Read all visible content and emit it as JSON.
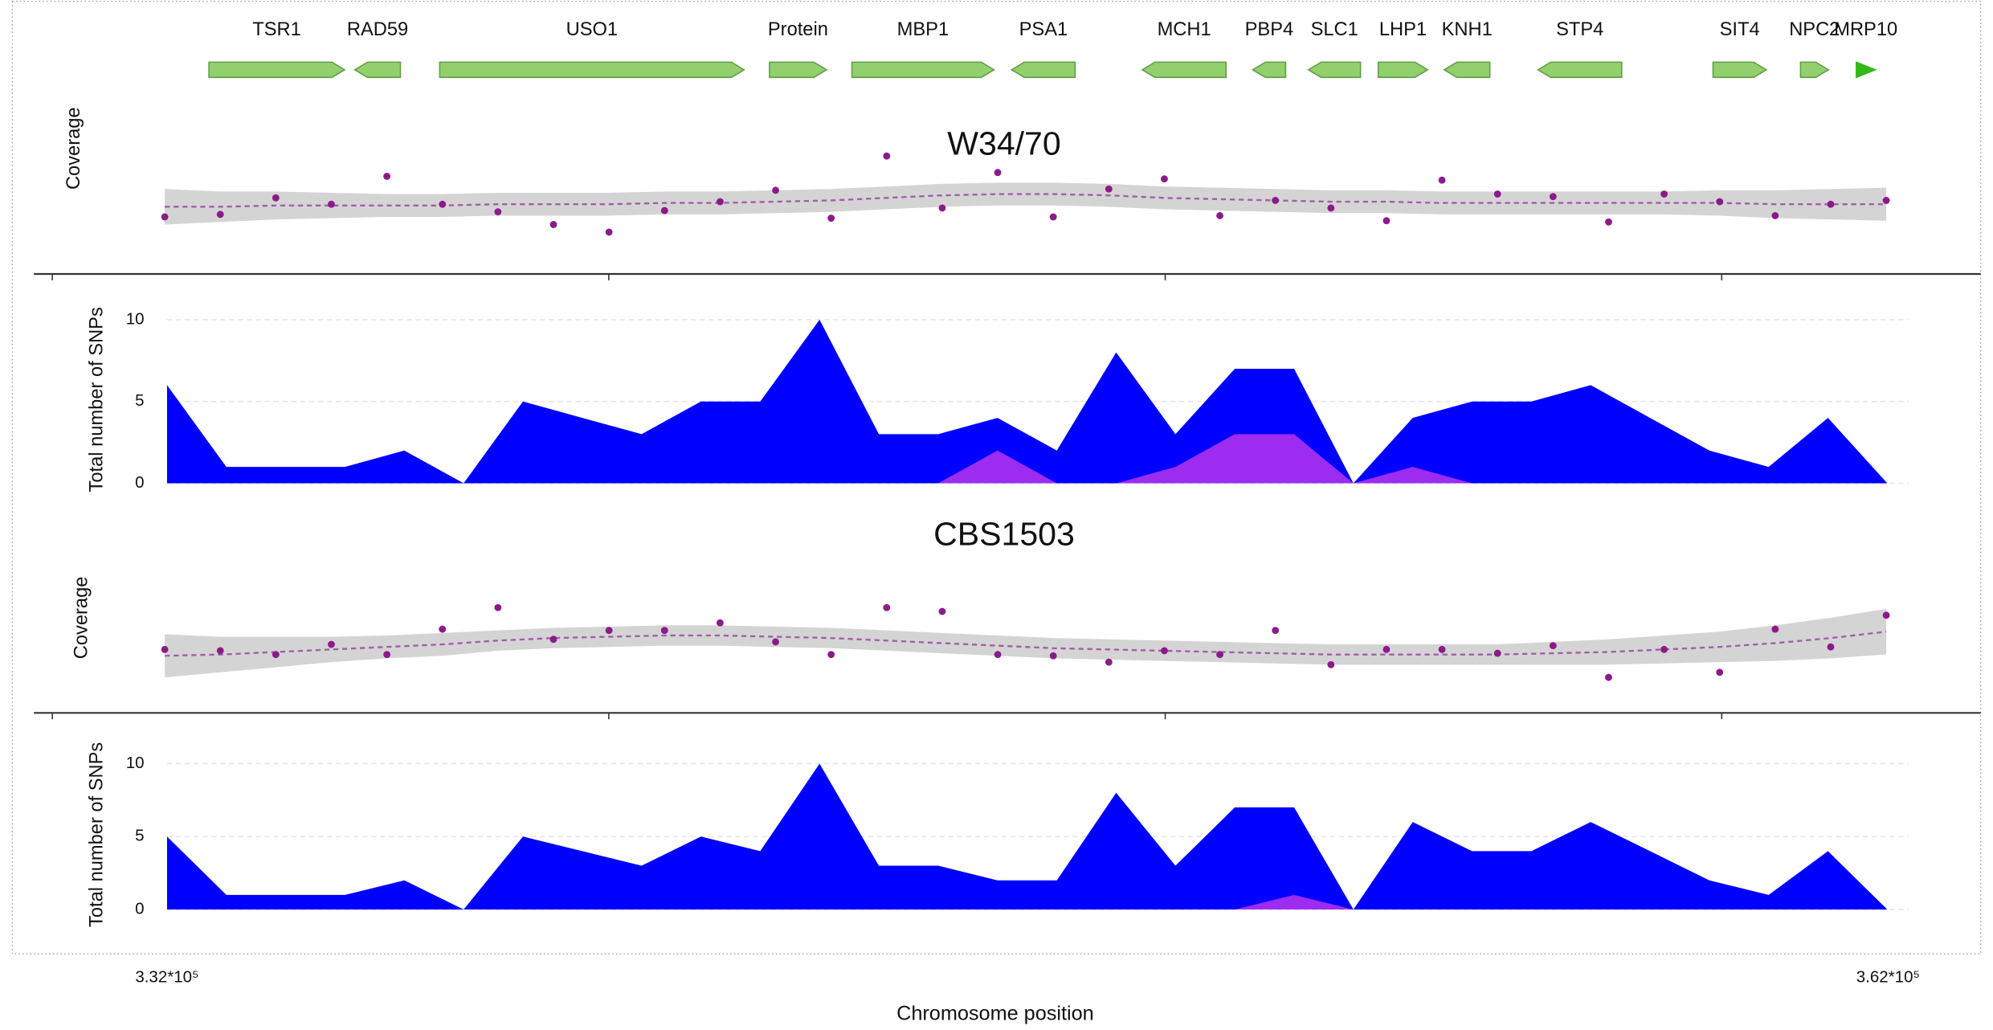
{
  "chart_data": [
    {
      "type": "genes",
      "xlim": [
        332000,
        362000
      ],
      "color": "#92d06e",
      "stroke": "#5f9e45",
      "genes": [
        {
          "name": "TSR1",
          "start": 332730,
          "end": 335095,
          "strand": "+"
        },
        {
          "name": "RAD59",
          "start": 335272,
          "end": 336068,
          "strand": "-"
        },
        {
          "name": "USO1",
          "start": 336753,
          "end": 342059,
          "strand": "+"
        },
        {
          "name": "Protein",
          "start": 342501,
          "end": 343496,
          "strand": "+"
        },
        {
          "name": "MBP1",
          "start": 343938,
          "end": 346414,
          "strand": "+"
        },
        {
          "name": "PSA1",
          "start": 346723,
          "end": 347829,
          "strand": "-"
        },
        {
          "name": "MCH1",
          "start": 349000,
          "end": 350459,
          "strand": "-"
        },
        {
          "name": "PBP4",
          "start": 350924,
          "end": 351498,
          "strand": "-"
        },
        {
          "name": "SLC1",
          "start": 351896,
          "end": 352803,
          "strand": "-"
        },
        {
          "name": "LHP1",
          "start": 353112,
          "end": 353974,
          "strand": "+"
        },
        {
          "name": "KNH1",
          "start": 354262,
          "end": 355058,
          "strand": "-"
        },
        {
          "name": "STP4",
          "start": 355898,
          "end": 357357,
          "strand": "-"
        },
        {
          "name": "SIT4",
          "start": 358948,
          "end": 359877,
          "strand": "+"
        },
        {
          "name": "NPC2",
          "start": 360474,
          "end": 360960,
          "strand": "+"
        },
        {
          "name": "MRP10",
          "start": 361446,
          "end": 361778,
          "strand": "+",
          "color": "#33b81a"
        }
      ]
    },
    {
      "type": "coverage",
      "title": "W34/70",
      "ylabel": "Coverage",
      "xlim": [
        332000,
        362000
      ],
      "ylim": [
        0,
        100
      ],
      "color": "#8b1a8b",
      "fit_color": "#a060a8",
      "band_color": "#d4d4d4",
      "minor_xticks": [
        330000,
        339700,
        349400,
        359100
      ],
      "x": [
        331960,
        332928,
        333896,
        334864,
        335832,
        336800,
        337768,
        338736,
        339704,
        340672,
        341640,
        342608,
        343576,
        344544,
        345512,
        346480,
        347448,
        348416,
        349384,
        350352,
        351320,
        352288,
        353256,
        354224,
        355192,
        356160,
        357128,
        358096,
        359064,
        360032,
        361000,
        361968
      ],
      "values": [
        29,
        31,
        44,
        39,
        61,
        39,
        33,
        23,
        17,
        34,
        41,
        50,
        28,
        77,
        36,
        64,
        29,
        51,
        59,
        30,
        42,
        36,
        26,
        58,
        47,
        45,
        25,
        47,
        41,
        30,
        39,
        42
      ],
      "fit": [
        37,
        37,
        38,
        38,
        38,
        38,
        39,
        39,
        39,
        40,
        40,
        41,
        42,
        44,
        46,
        47,
        47,
        46,
        44,
        43,
        42,
        41,
        41,
        40,
        40,
        40,
        40,
        40,
        40,
        39,
        39,
        39
      ],
      "ci": [
        14,
        12,
        11,
        10,
        9,
        9,
        9,
        9,
        9,
        9,
        9,
        9,
        9,
        9,
        9,
        9,
        9,
        9,
        9,
        9,
        9,
        9,
        9,
        9,
        9,
        9,
        9,
        9,
        10,
        11,
        12,
        13
      ]
    },
    {
      "type": "area",
      "ylabel": "Total number of SNPs",
      "xlim": [
        332000,
        362000
      ],
      "ylim": [
        0,
        10
      ],
      "yticks": [
        0,
        5,
        10
      ],
      "grid": true,
      "x": [
        332000,
        333034,
        334068,
        335102,
        336136,
        337170,
        338204,
        339238,
        340272,
        341306,
        342340,
        343374,
        344408,
        345442,
        346476,
        347510,
        348544,
        349578,
        350612,
        351646,
        352680,
        353714,
        354748,
        355782,
        356816,
        357850,
        358884,
        359918,
        360952,
        361986
      ],
      "series": [
        {
          "color": "#0000ff",
          "values": [
            6,
            1,
            1,
            1,
            2,
            0,
            5,
            4,
            3,
            5,
            5,
            10,
            3,
            3,
            4,
            2,
            8,
            3,
            7,
            7,
            0,
            4,
            5,
            5,
            6,
            4,
            2,
            1,
            4,
            0
          ]
        },
        {
          "color": "#9b2cf0",
          "values": [
            0,
            0,
            0,
            0,
            0,
            0,
            0,
            0,
            0,
            0,
            0,
            0,
            0,
            0,
            2,
            0,
            0,
            1,
            3,
            3,
            0,
            1,
            0,
            0,
            0,
            0,
            0,
            0,
            0,
            0
          ]
        }
      ]
    },
    {
      "type": "coverage",
      "title": "CBS1503",
      "ylabel": "Coverage",
      "xlim": [
        332000,
        362000
      ],
      "ylim": [
        0,
        100
      ],
      "color": "#8b1a8b",
      "fit_color": "#a060a8",
      "band_color": "#d4d4d4",
      "minor_xticks": [
        330000,
        339700,
        349400,
        359100
      ],
      "x": [
        331960,
        332928,
        333896,
        334864,
        335832,
        336800,
        337768,
        338736,
        339704,
        340672,
        341640,
        342608,
        343576,
        344544,
        345512,
        346480,
        347448,
        348416,
        349384,
        350352,
        351320,
        352288,
        353256,
        354224,
        355192,
        356160,
        357128,
        358096,
        359064,
        360032,
        361000,
        361968
      ],
      "values": [
        38,
        37,
        34,
        42,
        34,
        54,
        71,
        46,
        53,
        53,
        59,
        44,
        34,
        71,
        68,
        34,
        33,
        28,
        37,
        34,
        53,
        26,
        38,
        38,
        35,
        41,
        16,
        38,
        20,
        54,
        40,
        65
      ],
      "fit": [
        33,
        34,
        36,
        38,
        40,
        42,
        45,
        47,
        48,
        49,
        49,
        48,
        47,
        45,
        43,
        41,
        39,
        38,
        37,
        36,
        35,
        34,
        34,
        34,
        34,
        35,
        36,
        38,
        40,
        43,
        47,
        52
      ],
      "ci": [
        17,
        14,
        12,
        10,
        9,
        9,
        8,
        8,
        8,
        8,
        8,
        8,
        8,
        8,
        8,
        8,
        8,
        8,
        8,
        8,
        8,
        8,
        8,
        8,
        8,
        9,
        10,
        11,
        12,
        14,
        16,
        18
      ]
    },
    {
      "type": "area",
      "ylabel": "Total number of SNPs",
      "xlabel": "Chromosome position",
      "xlim": [
        332000,
        362000
      ],
      "ylim": [
        0,
        10
      ],
      "yticks": [
        0,
        5,
        10
      ],
      "grid": true,
      "xticks": [
        {
          "value": 332000,
          "label": "3.32*10⁵"
        },
        {
          "value": 362000,
          "label": "3.62*10⁵"
        }
      ],
      "x": [
        332000,
        333034,
        334068,
        335102,
        336136,
        337170,
        338204,
        339238,
        340272,
        341306,
        342340,
        343374,
        344408,
        345442,
        346476,
        347510,
        348544,
        349578,
        350612,
        351646,
        352680,
        353714,
        354748,
        355782,
        356816,
        357850,
        358884,
        359918,
        360952,
        361986
      ],
      "series": [
        {
          "color": "#0000ff",
          "values": [
            5,
            1,
            1,
            1,
            2,
            0,
            5,
            4,
            3,
            5,
            4,
            10,
            3,
            3,
            2,
            2,
            8,
            3,
            7,
            7,
            0,
            6,
            4,
            4,
            6,
            4,
            2,
            1,
            4,
            0
          ]
        },
        {
          "color": "#9b2cf0",
          "values": [
            0,
            0,
            0,
            0,
            0,
            0,
            0,
            0,
            0,
            0,
            0,
            0,
            0,
            0,
            0,
            0,
            0,
            0,
            0,
            1,
            0,
            0,
            0,
            0,
            0,
            0,
            0,
            0,
            0,
            0
          ]
        }
      ]
    }
  ]
}
